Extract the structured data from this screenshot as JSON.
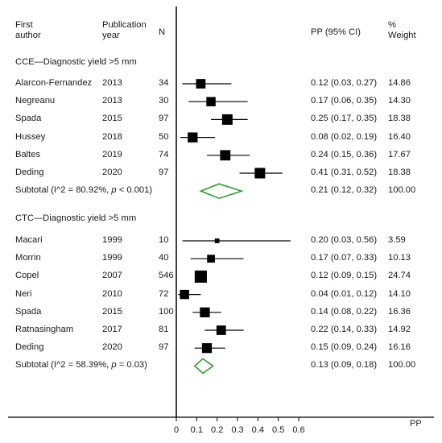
{
  "header": {
    "first_author_line1": "First",
    "first_author_line2": "author",
    "year_line1": "Publication",
    "year_line2": "year",
    "n": "N",
    "pp_ci": "PP (95% CI)",
    "weight_line1": "%",
    "weight_line2": "Weight"
  },
  "chart_data": {
    "type": "forest",
    "x_axis_title": "PP",
    "xlim": [
      0,
      0.6
    ],
    "x_ticks": [
      0,
      0.1,
      0.2,
      0.3,
      0.4,
      0.5,
      0.6
    ],
    "x_tick_labels": [
      "0",
      "0.1",
      "0.2",
      "0.3",
      "0.4",
      "0.5",
      "0.6"
    ],
    "groups": [
      {
        "title": "CCE—Diagnostic yield >5 mm",
        "studies": [
          {
            "author": "Alarcon-Fernandez",
            "year": "2013",
            "n": "34",
            "est": 0.12,
            "lo": 0.03,
            "hi": 0.27,
            "ci_text": "0.12 (0.03, 0.27)",
            "weight": 14.86,
            "weight_text": "14.86"
          },
          {
            "author": "Negreanu",
            "year": "2013",
            "n": "30",
            "est": 0.17,
            "lo": 0.06,
            "hi": 0.35,
            "ci_text": "0.17 (0.06, 0.35)",
            "weight": 14.3,
            "weight_text": "14.30"
          },
          {
            "author": "Spada",
            "year": "2015",
            "n": "97",
            "est": 0.25,
            "lo": 0.17,
            "hi": 0.35,
            "ci_text": "0.25 (0.17, 0.35)",
            "weight": 18.38,
            "weight_text": "18.38"
          },
          {
            "author": "Hussey",
            "year": "2018",
            "n": "50",
            "est": 0.08,
            "lo": 0.02,
            "hi": 0.19,
            "ci_text": "0.08 (0.02, 0.19)",
            "weight": 16.4,
            "weight_text": "16.40"
          },
          {
            "author": "Baltes",
            "year": "2019",
            "n": "74",
            "est": 0.24,
            "lo": 0.15,
            "hi": 0.36,
            "ci_text": "0.24 (0.15, 0.36)",
            "weight": 17.67,
            "weight_text": "17.67"
          },
          {
            "author": "Deding",
            "year": "2020",
            "n": "97",
            "est": 0.41,
            "lo": 0.31,
            "hi": 0.52,
            "ci_text": "0.41 (0.31, 0.52)",
            "weight": 18.38,
            "weight_text": "18.38"
          }
        ],
        "subtotal": {
          "label_prefix": "Subtotal  (I^2 = 80.92%, ",
          "label_p": "p",
          "label_suffix": " < 0.001)",
          "est": 0.21,
          "lo": 0.12,
          "hi": 0.32,
          "ci_text": "0.21 (0.12, 0.32)",
          "weight_text": "100.00"
        }
      },
      {
        "title": "CTC—Diagnostic yield >5 mm",
        "studies": [
          {
            "author": "Macari",
            "year": "1999",
            "n": "10",
            "est": 0.2,
            "lo": 0.03,
            "hi": 0.56,
            "ci_text": "0.20 (0.03, 0.56)",
            "weight": 3.59,
            "weight_text": "3.59"
          },
          {
            "author": "Morrin",
            "year": "1999",
            "n": "40",
            "est": 0.17,
            "lo": 0.07,
            "hi": 0.33,
            "ci_text": "0.17 (0.07, 0.33)",
            "weight": 10.13,
            "weight_text": "10.13"
          },
          {
            "author": "Copel",
            "year": "2007",
            "n": "546",
            "est": 0.12,
            "lo": 0.09,
            "hi": 0.15,
            "ci_text": "0.12 (0.09, 0.15)",
            "weight": 24.74,
            "weight_text": "24.74"
          },
          {
            "author": "Neri",
            "year": "2010",
            "n": "72",
            "est": 0.04,
            "lo": 0.01,
            "hi": 0.12,
            "ci_text": "0.04 (0.01, 0.12)",
            "weight": 14.1,
            "weight_text": "14.10"
          },
          {
            "author": "Spada",
            "year": "2015",
            "n": "100",
            "est": 0.14,
            "lo": 0.08,
            "hi": 0.22,
            "ci_text": "0.14 (0.08, 0.22)",
            "weight": 16.36,
            "weight_text": "16.36"
          },
          {
            "author": "Ratnasingham",
            "year": "2017",
            "n": "81",
            "est": 0.22,
            "lo": 0.14,
            "hi": 0.33,
            "ci_text": "0.22 (0.14, 0.33)",
            "weight": 14.92,
            "weight_text": "14.92"
          },
          {
            "author": "Deding",
            "year": "2020",
            "n": "97",
            "est": 0.15,
            "lo": 0.09,
            "hi": 0.24,
            "ci_text": "0.15 (0.09, 0.24)",
            "weight": 16.16,
            "weight_text": "16.16"
          }
        ],
        "subtotal": {
          "label_prefix": "Subtotal  (I^2 = 58.39%, ",
          "label_p": "p",
          "label_suffix": " = 0.03)",
          "est": 0.13,
          "lo": 0.09,
          "hi": 0.18,
          "ci_text": "0.13 (0.09, 0.18)",
          "weight_text": "100.00"
        }
      }
    ],
    "colors": {
      "marker": "#000000",
      "diamond": "#2e9e2e",
      "lines": "#000000",
      "text": "#1a1a1a"
    }
  }
}
